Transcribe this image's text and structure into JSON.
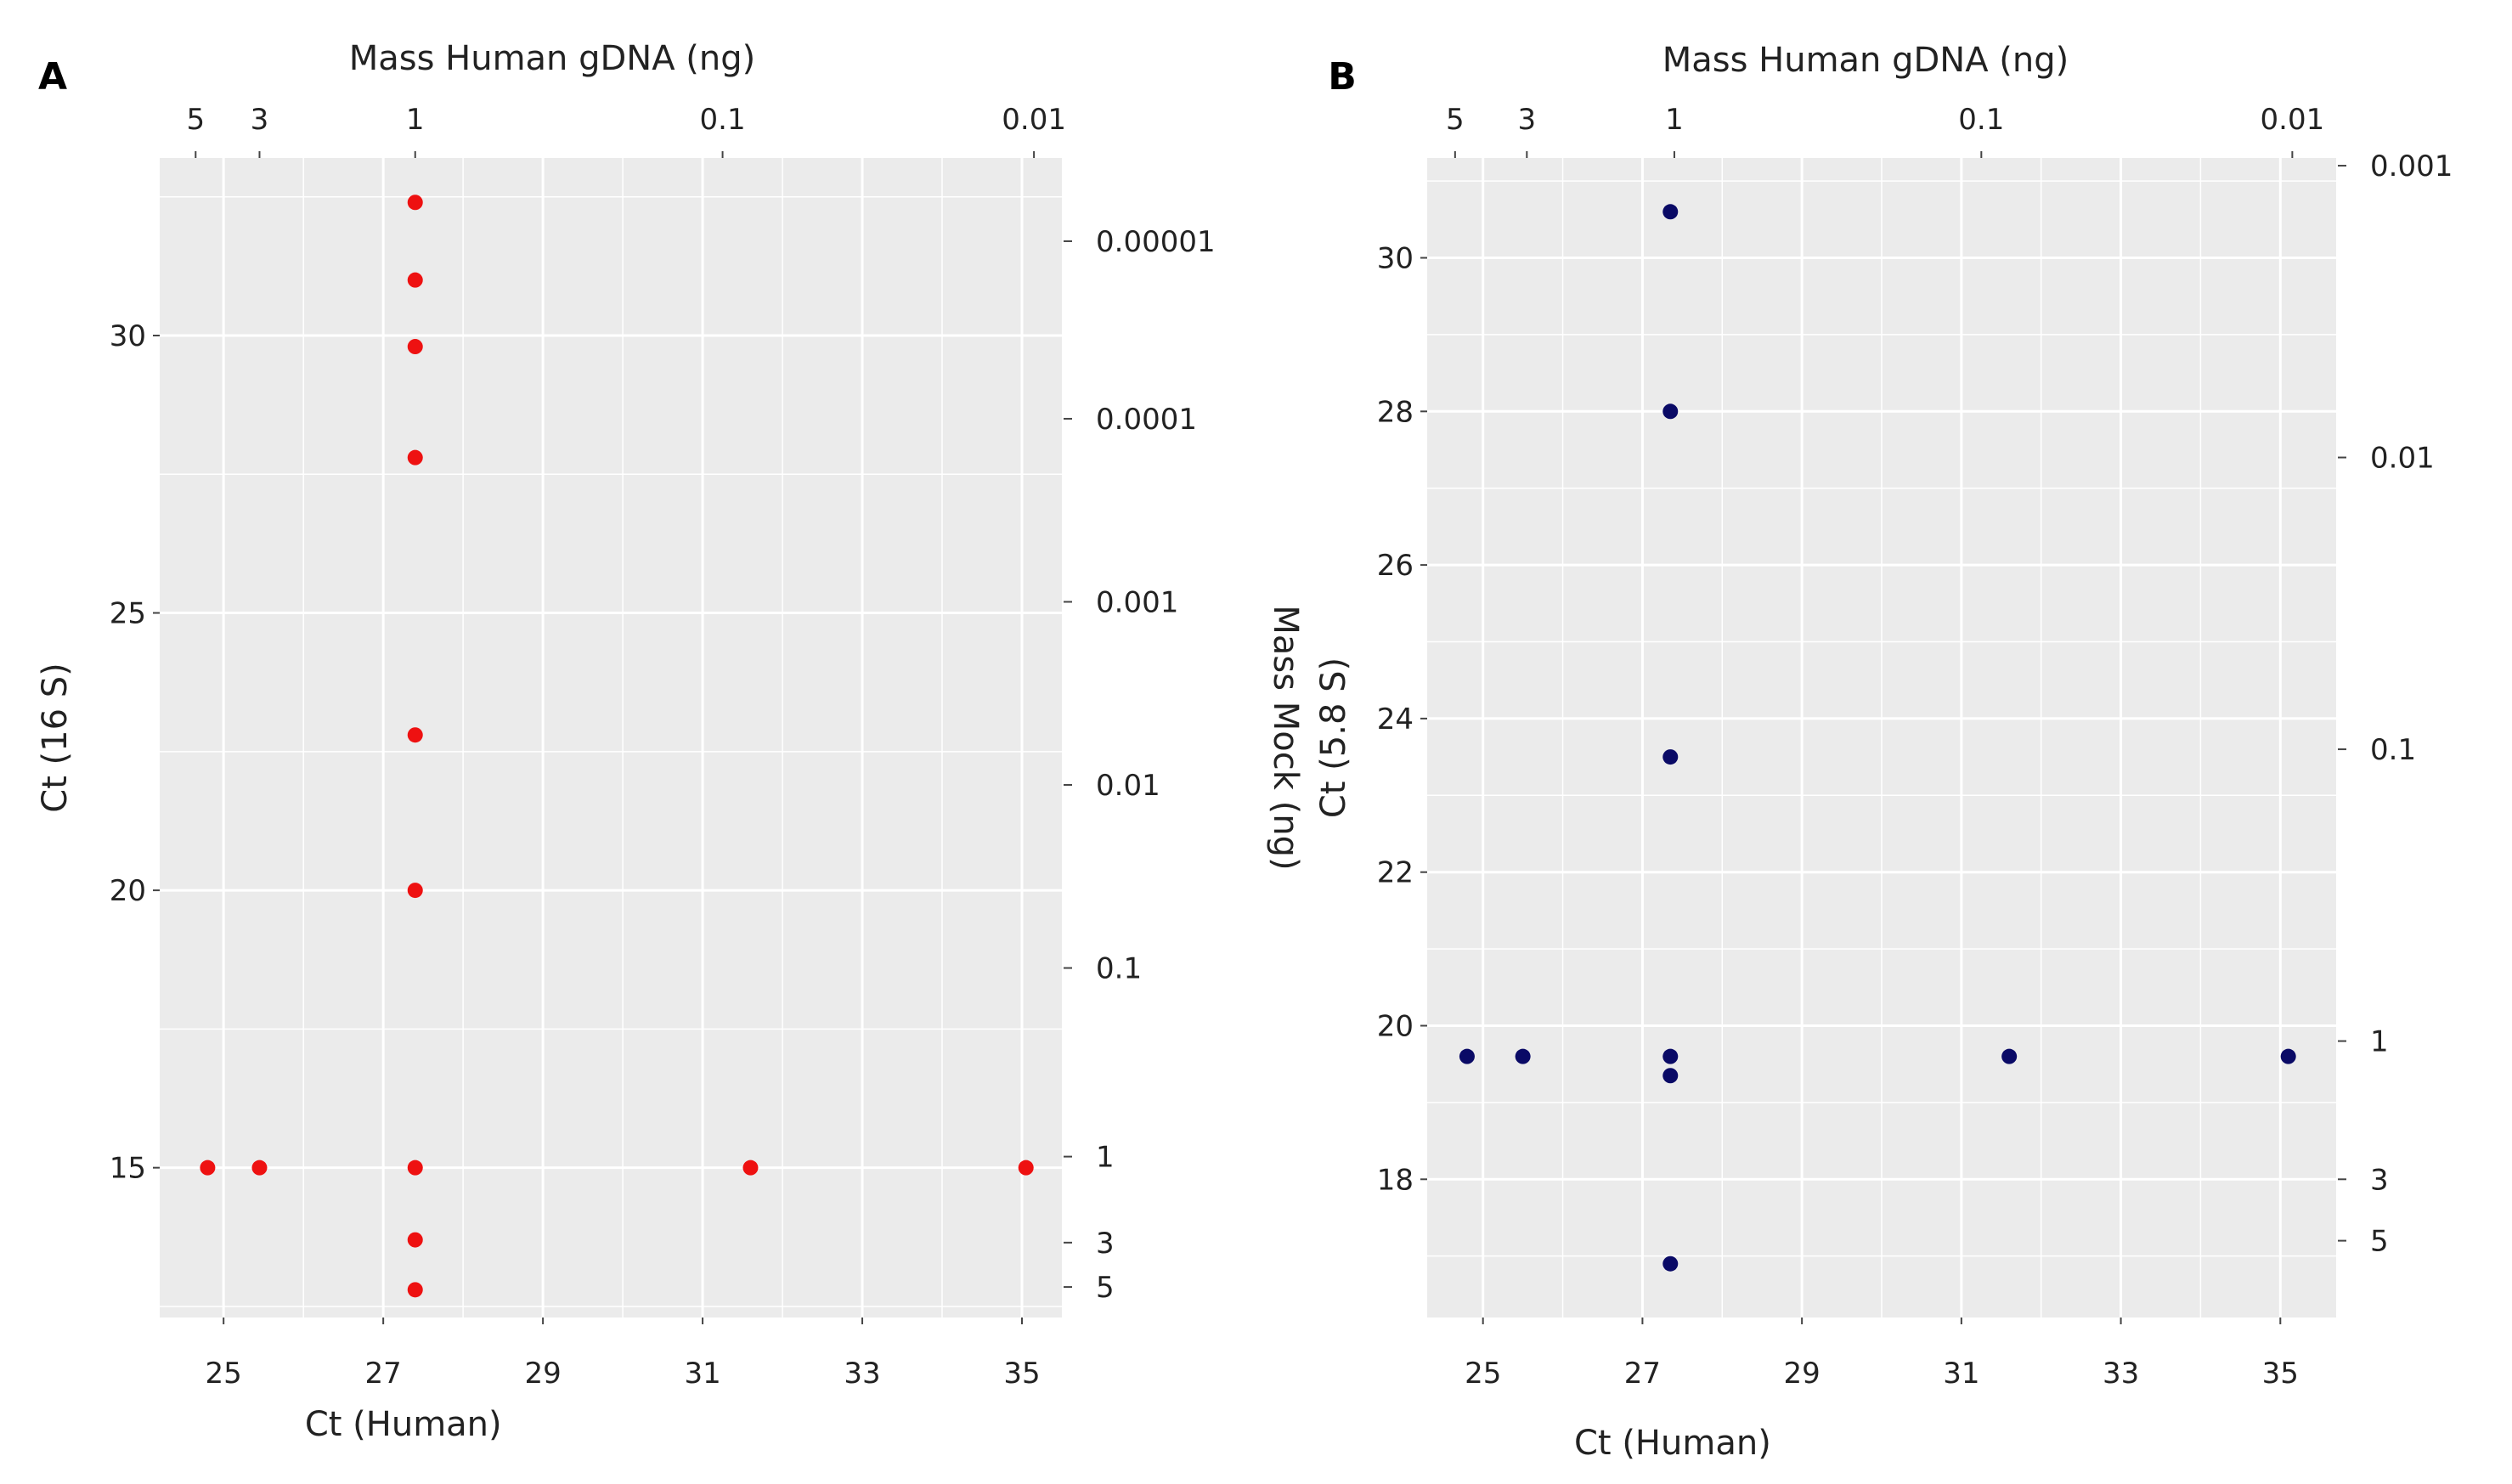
{
  "chart_data": [
    {
      "panel": "A",
      "type": "scatter",
      "xlabel": "Ct (Human)",
      "ylabel": "Ct (16 S)",
      "top_axis_label": "Mass Human gDNA (ng)",
      "right_axis_label": "Mass Mock (ng)",
      "xlim": [
        24.2,
        35.5
      ],
      "ylim": [
        12.3,
        33.2
      ],
      "x_ticks": [
        25,
        27,
        29,
        31,
        33,
        35
      ],
      "y_ticks": [
        15,
        20,
        25,
        30
      ],
      "top_ticks": [
        {
          "label": "5",
          "ct": 24.65
        },
        {
          "label": "3",
          "ct": 25.45
        },
        {
          "label": "1",
          "ct": 27.4
        },
        {
          "label": "0.1",
          "ct": 31.25
        },
        {
          "label": "0.01",
          "ct": 35.15
        }
      ],
      "right_ticks": [
        {
          "label": "0.00001",
          "ct": 31.7
        },
        {
          "label": "0.0001",
          "ct": 28.5
        },
        {
          "label": "0.001",
          "ct": 25.2
        },
        {
          "label": "0.01",
          "ct": 21.9
        },
        {
          "label": "0.1",
          "ct": 18.6
        },
        {
          "label": "1",
          "ct": 15.2
        },
        {
          "label": "3",
          "ct": 13.65
        },
        {
          "label": "5",
          "ct": 12.85
        }
      ],
      "point_color": "#ee1111",
      "points": [
        {
          "x": 24.8,
          "y": 15.0
        },
        {
          "x": 25.45,
          "y": 15.0
        },
        {
          "x": 27.4,
          "y": 15.0
        },
        {
          "x": 31.6,
          "y": 15.0
        },
        {
          "x": 35.05,
          "y": 15.0
        },
        {
          "x": 27.4,
          "y": 32.4
        },
        {
          "x": 27.4,
          "y": 31.0
        },
        {
          "x": 27.4,
          "y": 29.8
        },
        {
          "x": 27.4,
          "y": 27.8
        },
        {
          "x": 27.4,
          "y": 22.8
        },
        {
          "x": 27.4,
          "y": 20.0
        },
        {
          "x": 27.4,
          "y": 13.7
        },
        {
          "x": 27.4,
          "y": 12.8
        }
      ]
    },
    {
      "panel": "B",
      "type": "scatter",
      "xlabel": "Ct (Human)",
      "ylabel": "Ct (5.8 S)",
      "top_axis_label": "Mass Human gDNA (ng)",
      "right_axis_label": "Mass Mock (ng)",
      "xlim": [
        24.3,
        35.7
      ],
      "ylim": [
        16.2,
        31.3
      ],
      "x_ticks": [
        25,
        27,
        29,
        31,
        33,
        35
      ],
      "y_ticks": [
        18,
        20,
        22,
        24,
        26,
        28,
        30
      ],
      "top_ticks": [
        {
          "label": "5",
          "ct": 24.65
        },
        {
          "label": "3",
          "ct": 25.55
        },
        {
          "label": "1",
          "ct": 27.4
        },
        {
          "label": "0.1",
          "ct": 31.25
        },
        {
          "label": "0.01",
          "ct": 35.15
        }
      ],
      "right_ticks": [
        {
          "label": "0.001",
          "ct": 31.2
        },
        {
          "label": "0.01",
          "ct": 27.4
        },
        {
          "label": "0.1",
          "ct": 23.6
        },
        {
          "label": "1",
          "ct": 19.8
        },
        {
          "label": "3",
          "ct": 18.0
        },
        {
          "label": "5",
          "ct": 17.2
        }
      ],
      "point_color": "#0a0a66",
      "points": [
        {
          "x": 24.8,
          "y": 19.6
        },
        {
          "x": 25.5,
          "y": 19.6
        },
        {
          "x": 27.35,
          "y": 19.6
        },
        {
          "x": 31.6,
          "y": 19.6
        },
        {
          "x": 35.1,
          "y": 19.6
        },
        {
          "x": 27.35,
          "y": 19.35
        },
        {
          "x": 27.35,
          "y": 30.6
        },
        {
          "x": 27.35,
          "y": 28.0
        },
        {
          "x": 27.35,
          "y": 23.5
        },
        {
          "x": 27.35,
          "y": 16.9
        }
      ]
    }
  ],
  "panel_background": "#ebebeb",
  "grid_color": "#ffffff"
}
